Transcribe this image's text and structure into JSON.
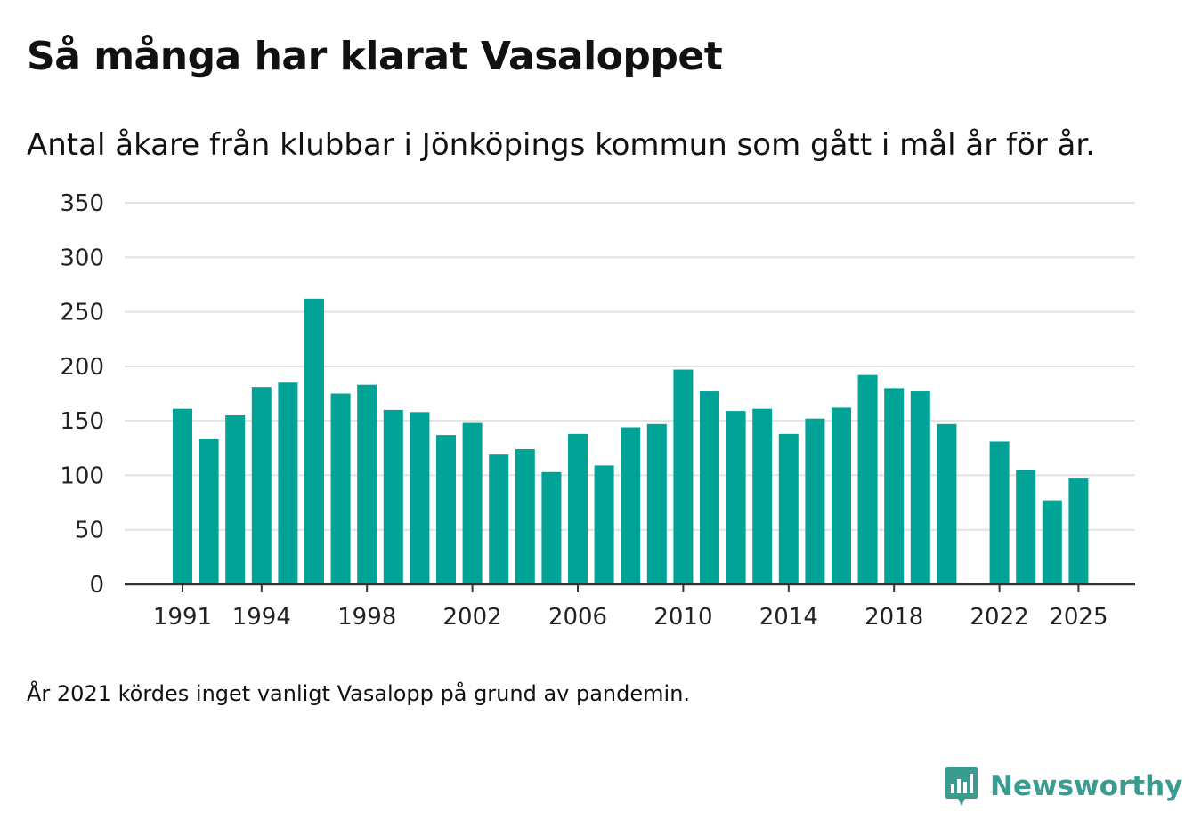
{
  "title": "Så många har klarat Vasaloppet",
  "subtitle": "Antal åkare från klubbar i Jönköpings kommun som gått i mål år för år.",
  "footnote": "År 2021 kördes inget vanligt Vasalopp på grund av pandemin.",
  "brand": {
    "name": "Newsworthy",
    "color": "#3a9c90"
  },
  "chart_data": {
    "type": "bar",
    "title": "Så många har klarat Vasaloppet",
    "subtitle": "Antal åkare från klubbar i Jönköpings kommun som gått i mål år för år.",
    "xlabel": "",
    "ylabel": "",
    "ylim": [
      0,
      350
    ],
    "yticks": [
      0,
      50,
      100,
      150,
      200,
      250,
      300,
      350
    ],
    "xticks": [
      1991,
      1994,
      1998,
      2002,
      2006,
      2010,
      2014,
      2018,
      2022,
      2025
    ],
    "bar_color": "#00a396",
    "grid": true,
    "x": [
      1991,
      1992,
      1993,
      1994,
      1995,
      1996,
      1997,
      1998,
      1999,
      2000,
      2001,
      2002,
      2003,
      2004,
      2005,
      2006,
      2007,
      2008,
      2009,
      2010,
      2011,
      2012,
      2013,
      2014,
      2015,
      2016,
      2017,
      2018,
      2019,
      2020,
      2021,
      2022,
      2023,
      2024,
      2025
    ],
    "values": [
      161,
      133,
      155,
      181,
      185,
      262,
      175,
      183,
      160,
      158,
      137,
      148,
      119,
      124,
      103,
      138,
      109,
      144,
      147,
      197,
      177,
      159,
      161,
      138,
      152,
      162,
      192,
      180,
      177,
      147,
      null,
      131,
      105,
      77,
      97
    ]
  }
}
